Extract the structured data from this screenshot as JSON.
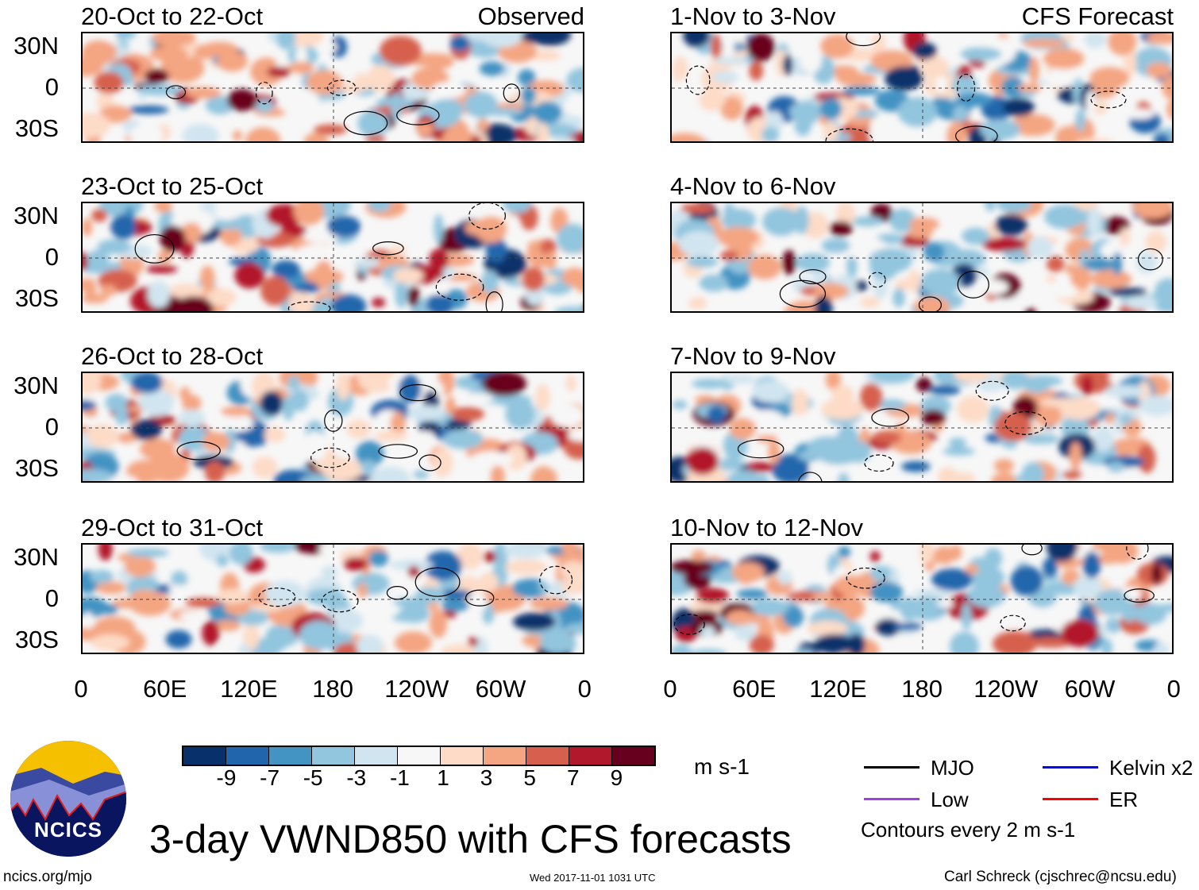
{
  "panels_left": [
    {
      "title": "20-Oct to 22-Oct",
      "tag": "Observed"
    },
    {
      "title": "23-Oct to 25-Oct",
      "tag": ""
    },
    {
      "title": "26-Oct to 28-Oct",
      "tag": ""
    },
    {
      "title": "29-Oct to 31-Oct",
      "tag": ""
    }
  ],
  "panels_right": [
    {
      "title": "1-Nov to 3-Nov",
      "tag": "CFS Forecast"
    },
    {
      "title": "4-Nov to 6-Nov",
      "tag": ""
    },
    {
      "title": "7-Nov to 9-Nov",
      "tag": ""
    },
    {
      "title": "10-Nov to 12-Nov",
      "tag": ""
    }
  ],
  "lat_labels": [
    "30N",
    "0",
    "30S"
  ],
  "lon_labels": [
    "0",
    "60E",
    "120E",
    "180",
    "120W",
    "60W",
    "0"
  ],
  "colorbar": {
    "colors": [
      "#08306b",
      "#2166ac",
      "#4393c3",
      "#92c5de",
      "#d1e5f0",
      "#f7f7f7",
      "#fddbc7",
      "#f4a582",
      "#d6604d",
      "#b2182b",
      "#67001f"
    ],
    "labels": [
      "-9",
      "-7",
      "-5",
      "-3",
      "-1",
      "1",
      "3",
      "5",
      "7",
      "9"
    ],
    "units": "m s-1"
  },
  "legend": {
    "items": [
      {
        "label": "MJO",
        "color": "#000000"
      },
      {
        "label": "Kelvin x2",
        "color": "#0000ff"
      },
      {
        "label": "Low",
        "color": "#a040e0"
      },
      {
        "label": "ER",
        "color": "#ff0000"
      }
    ],
    "note": "Contours every 2 m s-1"
  },
  "title": "3-day VWND850 with CFS forecasts",
  "logo_text": "NCICS",
  "url": "ncics.org/mjo",
  "timestamp": "Wed 2017-11-01 1031 UTC",
  "credit": "Carl Schreck (cjschrec@ncsu.edu)"
}
